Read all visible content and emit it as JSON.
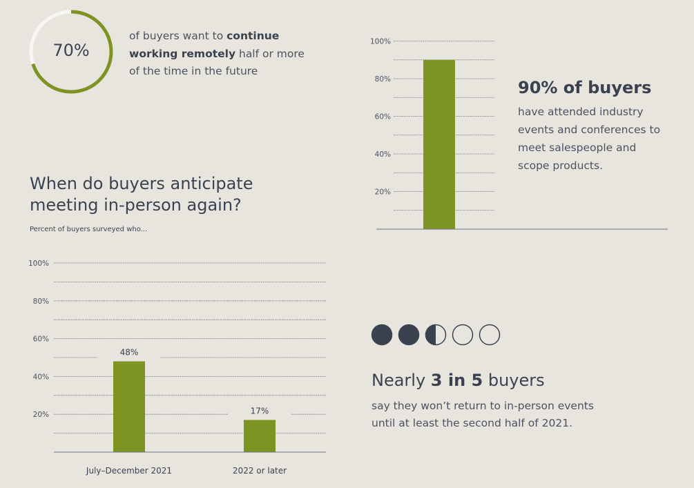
{
  "colors": {
    "accent": "#7d9422",
    "dark": "#3a4250",
    "track": "#f7f6f2",
    "grid": "#6e7682"
  },
  "stat_ring": {
    "value_label": "70%",
    "fraction": 0.7,
    "text_pre": "of buyers want to ",
    "text_bold": "continue working remotely",
    "text_post": " half or more of the time in the future"
  },
  "question": {
    "title": "When do buyers anticipate meeting in-person again?",
    "subtitle": "Percent of buyers surveyed who..."
  },
  "events": {
    "title": "90% of buyers",
    "text": "have attended industry events and conferences to meet salespeople and scope products."
  },
  "nearly": {
    "pre": "Nearly ",
    "bold": "3 in 5",
    "post": " buyers",
    "text": "say they won’t return to in-person events until at least the second half of 2021.",
    "dots_filled": 2.5,
    "dots_total": 5
  },
  "chart_data": [
    {
      "type": "bar",
      "title": "",
      "categories": [
        ""
      ],
      "values": [
        90
      ],
      "ylim": [
        0,
        100
      ],
      "yticks": [
        "20%",
        "40%",
        "60%",
        "80%",
        "100%"
      ],
      "ytick_values": [
        20,
        40,
        60,
        80,
        100
      ],
      "grid": true
    },
    {
      "type": "bar",
      "title": "When do buyers anticipate meeting in-person again?",
      "categories": [
        "July–December 2021",
        "2022 or later"
      ],
      "values": [
        48,
        17
      ],
      "data_labels": [
        "48%",
        "17%"
      ],
      "ylim": [
        0,
        100
      ],
      "yticks": [
        "20%",
        "40%",
        "60%",
        "80%",
        "100%"
      ],
      "ytick_values": [
        20,
        40,
        60,
        80,
        100
      ],
      "grid": true
    }
  ]
}
